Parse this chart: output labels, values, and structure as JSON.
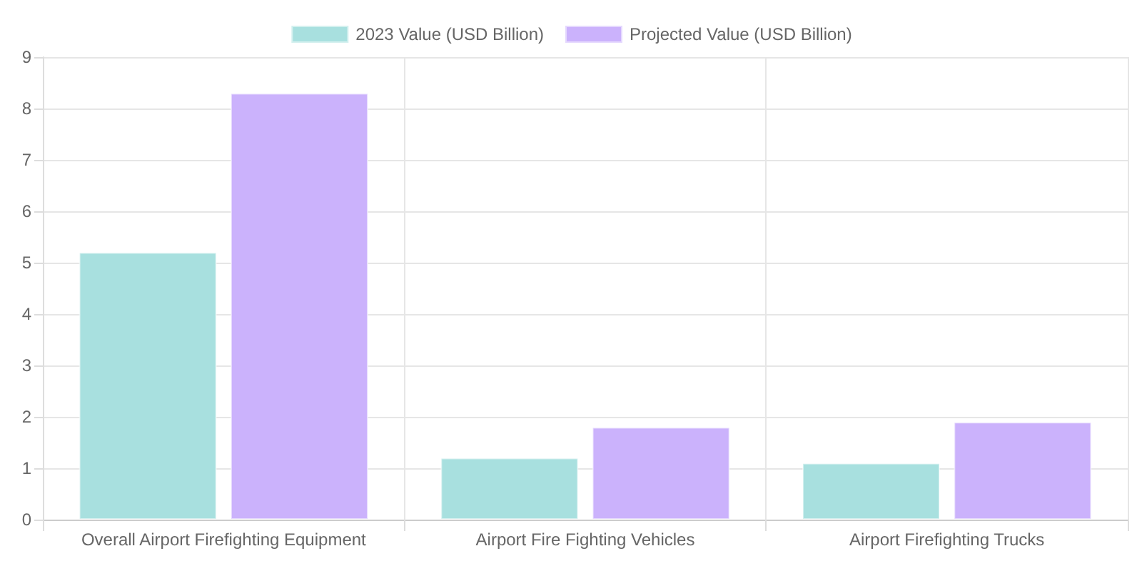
{
  "chart_data": {
    "type": "bar",
    "categories": [
      "Overall Airport Firefighting Equipment",
      "Airport Fire Fighting Vehicles",
      "Airport Firefighting Trucks"
    ],
    "series": [
      {
        "name": "2023 Value (USD Billion)",
        "color": "#a8e0df",
        "values": [
          5.2,
          1.2,
          1.1
        ]
      },
      {
        "name": "Projected Value (USD Billion)",
        "color": "#cbb2fc",
        "values": [
          8.3,
          1.8,
          1.9
        ]
      }
    ],
    "ylim": [
      0,
      9
    ],
    "yticks": [
      0,
      1,
      2,
      3,
      4,
      5,
      6,
      7,
      8,
      9
    ],
    "grid": true,
    "legend": "top"
  }
}
